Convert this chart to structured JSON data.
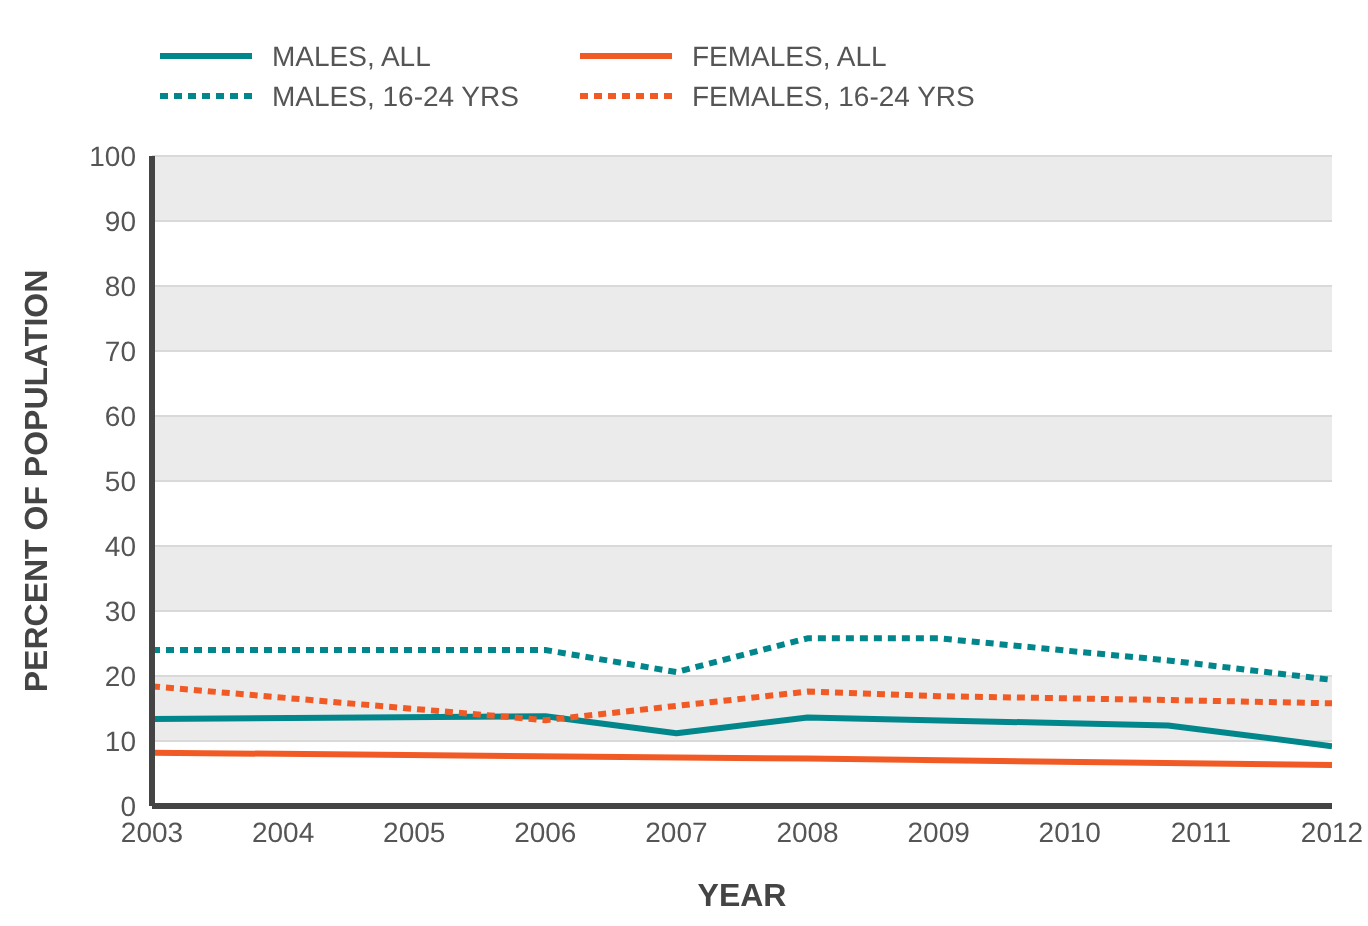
{
  "chart_data": {
    "type": "line",
    "xlabel": "YEAR",
    "ylabel": "PERCENT OF POPULATION",
    "xlim": [
      2003,
      2012
    ],
    "xticks": [
      2003,
      2004,
      2005,
      2006,
      2007,
      2008,
      2009,
      2010,
      2011,
      2012
    ],
    "ylim": [
      0,
      100
    ],
    "yticks": [
      0,
      10,
      20,
      30,
      40,
      50,
      60,
      70,
      80,
      90,
      100
    ],
    "grid": "y",
    "legend": "top left",
    "marker": "none",
    "series": [
      {
        "name": "MALES, ALL",
        "color": "#00868b",
        "line_style": "solid",
        "x": [
          2003,
          2006,
          2007,
          2008,
          2010.75,
          2012
        ],
        "values": [
          13.4,
          13.8,
          11.2,
          13.6,
          12.4,
          9.2
        ]
      },
      {
        "name": "FEMALES, ALL",
        "color": "#f15a24",
        "line_style": "solid",
        "x": [
          2003,
          2008,
          2012
        ],
        "values": [
          8.2,
          7.3,
          6.3
        ]
      },
      {
        "name": "MALES, 16-24 YRS",
        "color": "#00868b",
        "line_style": "dotted",
        "x": [
          2003,
          2006,
          2007,
          2008,
          2009,
          2010.75,
          2012
        ],
        "values": [
          24,
          24,
          20.6,
          25.8,
          25.8,
          22.4,
          19.4
        ]
      },
      {
        "name": "FEMALES, 16-24 YRS",
        "color": "#f15a24",
        "line_style": "dotted",
        "x": [
          2003,
          2006,
          2007,
          2008,
          2009,
          2010.75,
          2012
        ],
        "values": [
          18.4,
          13.2,
          15.4,
          17.6,
          16.9,
          16.3,
          15.8
        ]
      }
    ]
  }
}
